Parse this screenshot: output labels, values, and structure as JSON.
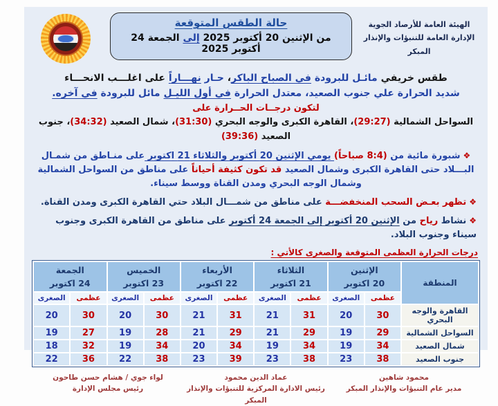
{
  "colors": {
    "page_bg": "#e7edf6",
    "box_bg": "#c9d9ef",
    "header_blue": "#9dc3e6",
    "cell_blue": "#d6e6f5",
    "accent_red": "#c00000",
    "text_blue": "#2343a6",
    "text_navy": "#1d3a6e",
    "signature_maroon": "#9e3a3a"
  },
  "header": {
    "agency_line1": "الهيئة العامة للأرصاد الجوية",
    "agency_line2": "الإدارة العامة للتنبؤات والإنذار المبكر",
    "box_title": "حالة الطقس المتوقعة",
    "date_pre": "من الإثنين 20 أكتوبر 2025 ",
    "date_to": "إلى",
    "date_post": " الجمعة 24 أكتوبر 2025",
    "logo": "egyptian-meteorological-authority-emblem"
  },
  "summary": {
    "s1": "طقس خريفي ",
    "s2": "مائـل للبرودة ",
    "s3": "في الصباح الباكر",
    "s4": "، ",
    "s5": "حـار ",
    "s6": "نهـــاراً",
    "s7": " على اغلـــب الانحـــاء",
    "s8": "شديد الحرارة علي جنوب الصعيد، معتدل الحرارة ",
    "s9": "في أول الليـل",
    "s10": " مائل للبرودة ",
    "s11": "في آخره."
  },
  "temps_intro": "لتكون درجــات الحــرارة على",
  "temps": {
    "t1": "السواحل الشمالية ",
    "v1": "(29:27)",
    "t2": "، القاهرة الكبرى والوجه البحري ",
    "v2": "(31:30)",
    "t3": "، شمال الصعيد ",
    "v3": "(34:32)",
    "t4": "، جنوب الصعيد ",
    "v4": "(39:36)"
  },
  "bullets": {
    "icon": "❖",
    "b1": {
      "s1": "شبورة مائية من ",
      "s2": "(8:4 صباحاً)",
      "s3": " يومي  الإثنين 20 أكتوبر والثلاثاء 21 اكتوبر ",
      "s4": "على منـاطق من شمـال البـــلاد حتى القاهرة الكبرى وشمال الصعيد ",
      "s5": "قد تكون كثيفة أحياناً",
      "s6": " على مناطق من السواحل الشمالية وشمال الوجه البحري ومدن القناة ووسط سيناء."
    },
    "b2": {
      "s1": "تظهر بعـض السحب المنخفضـــة",
      "s2": " على مناطق من شمـــال البلاد حتي القاهرة الكبرى ومدن القناة."
    },
    "b3": {
      "s1": "نشاط ",
      "s2": "رياح",
      "s3": " من ",
      "s4": "الإثنين 20 أكتوبر إلى الجمعة 24 أكتوبر",
      "s5": " على مناطق من القاهرة الكبرى وجنوب سيناء وجنوب البلاد."
    }
  },
  "table_heading": "درجات الحرارة العظمى المتوقعة والصغرى كالأتي :",
  "table": {
    "region_header": "المنطقة",
    "max_label": "عظمى",
    "min_label": "الصغرى",
    "days": [
      {
        "name": "الإثنين",
        "date": "20  اكتوبر"
      },
      {
        "name": "الثلاثاء",
        "date": "21  اكتوبر"
      },
      {
        "name": "الأربعاء",
        "date": "22  اكتوبر"
      },
      {
        "name": "الخميس",
        "date": "23  اكتوبر"
      },
      {
        "name": "الجمعة",
        "date": "24  اكتوبر"
      }
    ],
    "rows": [
      {
        "region": "القاهرة والوجه البحري",
        "temps": [
          {
            "max": 30,
            "min": 20
          },
          {
            "max": 31,
            "min": 21
          },
          {
            "max": 31,
            "min": 21
          },
          {
            "max": 30,
            "min": 20
          },
          {
            "max": 30,
            "min": 20
          }
        ]
      },
      {
        "region": "السواحل الشمالية",
        "temps": [
          {
            "max": 29,
            "min": 19
          },
          {
            "max": 29,
            "min": 21
          },
          {
            "max": 29,
            "min": 21
          },
          {
            "max": 28,
            "min": 19
          },
          {
            "max": 27,
            "min": 19
          }
        ]
      },
      {
        "region": "شمال الصعيد",
        "temps": [
          {
            "max": 34,
            "min": 19
          },
          {
            "max": 34,
            "min": 19
          },
          {
            "max": 34,
            "min": 20
          },
          {
            "max": 34,
            "min": 19
          },
          {
            "max": 32,
            "min": 18
          }
        ]
      },
      {
        "region": "جنوب الصعيد",
        "temps": [
          {
            "max": 38,
            "min": 23
          },
          {
            "max": 38,
            "min": 23
          },
          {
            "max": 39,
            "min": 23
          },
          {
            "max": 38,
            "min": 22
          },
          {
            "max": 36,
            "min": 22
          }
        ]
      }
    ]
  },
  "signatures": [
    {
      "name": "محمود شاهين",
      "title": "مدير عام التنبؤات والإنذار المبكر"
    },
    {
      "name": "عماد الدين محمود",
      "title": "رئيس الادارة المركزية للتنبؤات والإنذار المبكر"
    },
    {
      "name": "لواء جوي / هشام حسن طاحون",
      "title": "رئيس مجلس الإدارة"
    }
  ]
}
